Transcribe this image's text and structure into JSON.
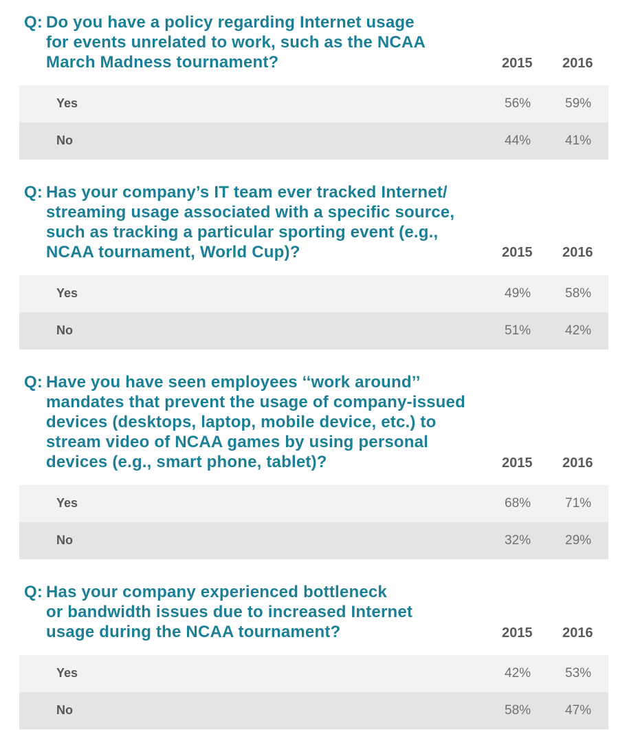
{
  "questions": [
    {
      "prefix": "Q:",
      "lines": [
        "Do you have a policy regarding Internet usage",
        "for events unrelated to work, such as the NCAA",
        "March Madness tournament?"
      ],
      "year_a": "2015",
      "year_b": "2016",
      "rows": [
        {
          "label": "Yes",
          "v2015": "56%",
          "v2016": "59%"
        },
        {
          "label": "No",
          "v2015": "44%",
          "v2016": "41%"
        }
      ]
    },
    {
      "prefix": "Q:",
      "lines": [
        "Has your company’s IT team ever tracked Internet/",
        "streaming usage associated with a specific source,",
        "such as tracking a particular sporting event (e.g.,",
        "NCAA tournament, World Cup)?"
      ],
      "year_a": "2015",
      "year_b": "2016",
      "rows": [
        {
          "label": "Yes",
          "v2015": "49%",
          "v2016": "58%"
        },
        {
          "label": "No",
          "v2015": "51%",
          "v2016": "42%"
        }
      ]
    },
    {
      "prefix": "Q:",
      "lines": [
        "Have you have seen employees ‘‘work around’’",
        "mandates that prevent the usage of company-issued",
        "devices (desktops, laptop, mobile device, etc.) to",
        "stream video of NCAA games by using personal",
        "devices (e.g., smart phone, tablet)?"
      ],
      "year_a": "2015",
      "year_b": "2016",
      "rows": [
        {
          "label": "Yes",
          "v2015": "68%",
          "v2016": "71%"
        },
        {
          "label": "No",
          "v2015": "32%",
          "v2016": "29%"
        }
      ]
    },
    {
      "prefix": "Q:",
      "lines": [
        "Has your company experienced bottleneck",
        "or bandwidth issues due to increased Internet",
        "usage during the NCAA tournament?"
      ],
      "year_a": "2015",
      "year_b": "2016",
      "rows": [
        {
          "label": "Yes",
          "v2015": "42%",
          "v2016": "53%"
        },
        {
          "label": "No",
          "v2015": "58%",
          "v2016": "47%"
        }
      ]
    }
  ]
}
